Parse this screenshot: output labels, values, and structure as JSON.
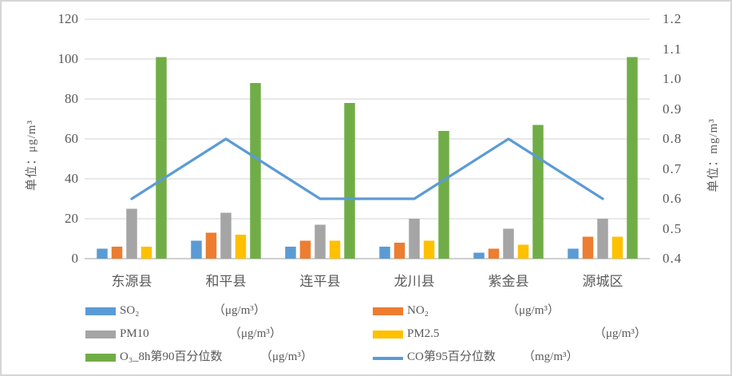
{
  "chart_data": {
    "type": "bar+line",
    "title": "",
    "categories": [
      "东源县",
      "和平县",
      "连平县",
      "龙川县",
      "紫金县",
      "源城区"
    ],
    "series": [
      {
        "name": "SO₂",
        "unit": "（μg/m³）",
        "type": "bar",
        "axis": "left",
        "color": "#5B9BD5",
        "values": [
          5,
          9,
          6,
          6,
          3,
          5
        ]
      },
      {
        "name": "NO₂",
        "unit": "（μg/m³）",
        "type": "bar",
        "axis": "left",
        "color": "#ED7D31",
        "values": [
          6,
          13,
          9,
          8,
          5,
          11
        ]
      },
      {
        "name": "PM10",
        "unit": "（μg/m³）",
        "type": "bar",
        "axis": "left",
        "color": "#A5A5A5",
        "values": [
          25,
          23,
          17,
          20,
          15,
          20
        ]
      },
      {
        "name": "PM2.5",
        "unit": "（μg/m³）",
        "type": "bar",
        "axis": "left",
        "color": "#FFC000",
        "values": [
          6,
          12,
          9,
          9,
          7,
          11
        ]
      },
      {
        "name": "O₃_8h第90百分位数",
        "unit": "（μg/m³）",
        "type": "bar",
        "axis": "left",
        "color": "#70AD47",
        "values": [
          101,
          88,
          78,
          64,
          67,
          101
        ]
      },
      {
        "name": "CO第95百分位数",
        "unit": "（mg/m³）",
        "type": "line",
        "axis": "right",
        "color": "#5B9BD5",
        "values": [
          0.6,
          0.8,
          0.6,
          0.6,
          0.8,
          0.6
        ]
      }
    ],
    "left_axis": {
      "title": "单位：μg/m³",
      "min": 0,
      "max": 120,
      "step": 20,
      "ticks": [
        "0",
        "20",
        "40",
        "60",
        "80",
        "100",
        "120"
      ]
    },
    "right_axis": {
      "title": "单位：mg/m³",
      "min": 0.4,
      "max": 1.2,
      "step": 0.1,
      "ticks": [
        "0.4",
        "0.5",
        "0.6",
        "0.7",
        "0.8",
        "0.9",
        "1.0",
        "1.1",
        "1.2"
      ]
    },
    "grid": true,
    "legend_position": "bottom"
  },
  "colors": {
    "grid": "#D9D9D9",
    "baseline": "#BFBFBF",
    "text": "#595959",
    "background": "#FFFFFF",
    "border": "#D6D6D6"
  }
}
